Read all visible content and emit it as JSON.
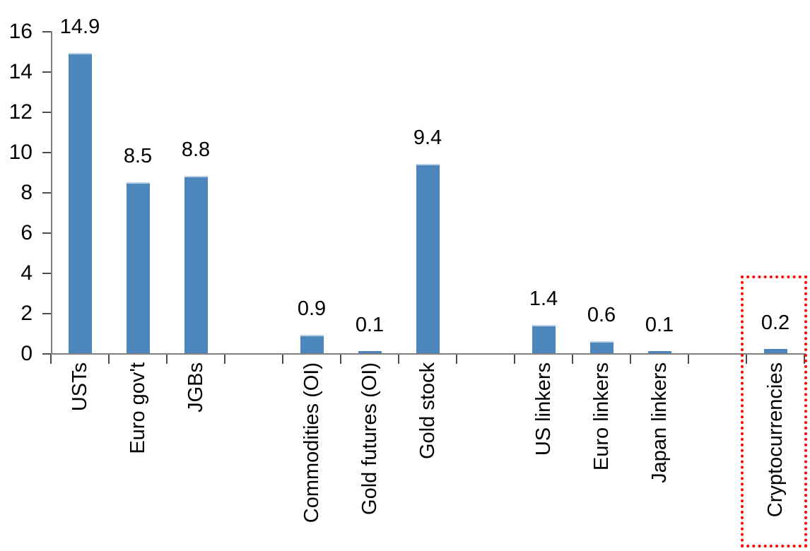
{
  "chart_data": {
    "type": "bar",
    "title": "",
    "xlabel": "",
    "ylabel": "",
    "categories": [
      "USTs",
      "Euro gov't",
      "JGBs",
      "",
      "Commodities (OI)",
      "Gold futures (OI)",
      "Gold stock",
      "",
      "US linkers",
      "Euro linkers",
      "Japan linkers",
      "",
      "Cryptocurrencies"
    ],
    "values": [
      14.9,
      8.5,
      8.8,
      null,
      0.9,
      0.1,
      9.4,
      null,
      1.4,
      0.6,
      0.1,
      null,
      0.2
    ],
    "value_labels": [
      "14.9",
      "8.5",
      "8.8",
      "",
      "0.9",
      "0.1",
      "9.4",
      "",
      "1.4",
      "0.6",
      "0.1",
      "",
      "0.2"
    ],
    "ylim": [
      0,
      16
    ],
    "yticks": [
      0,
      2,
      4,
      6,
      8,
      10,
      12,
      14,
      16
    ],
    "grid": false,
    "legend": false,
    "bar_color": "#4D86BC",
    "bar_top_highlight_color": "#BCD2E6",
    "axis_color": "#7F7F7F",
    "tick_color": "#4D4D4D",
    "text_color": "#000000",
    "highlight": {
      "category": "Cryptocurrencies",
      "style": "red-dotted-box",
      "color": "#FF0000"
    }
  }
}
